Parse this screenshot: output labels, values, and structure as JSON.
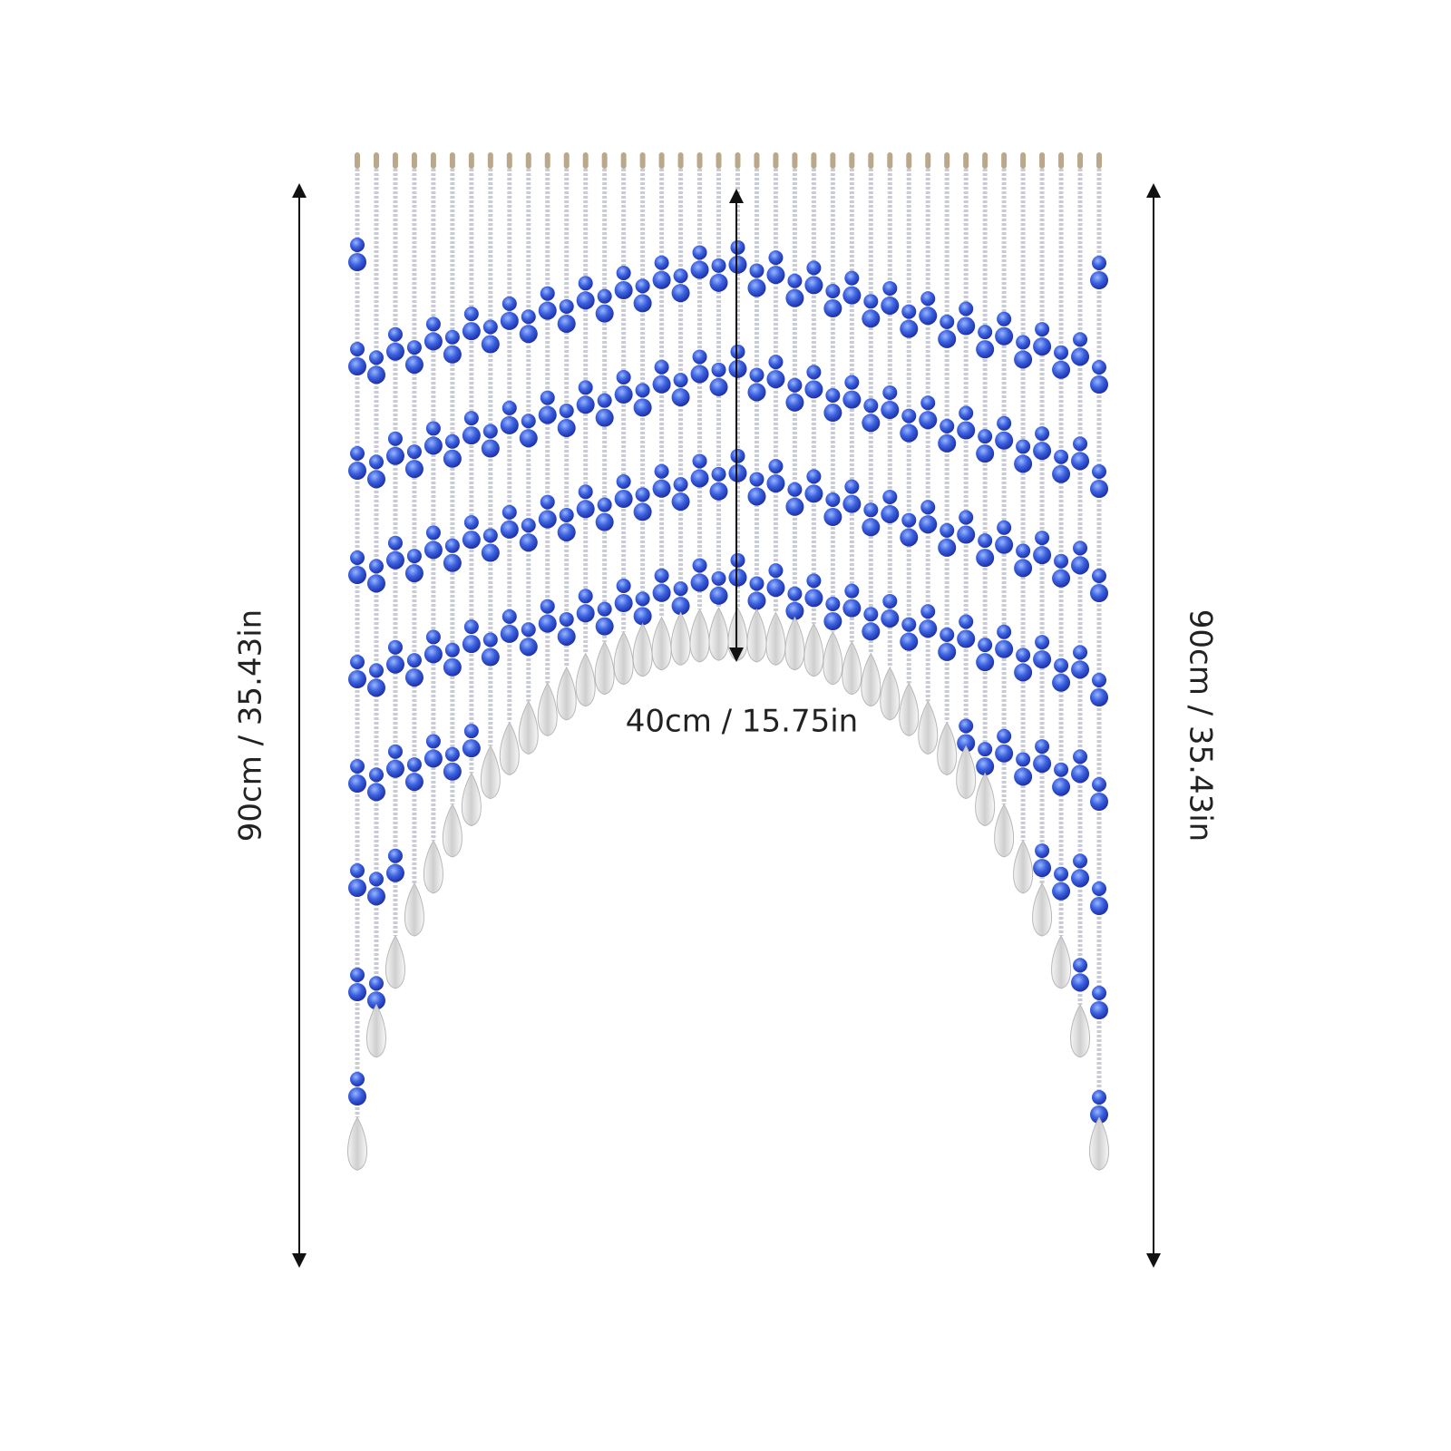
{
  "dimensions": {
    "left_height": "90cm / 35.43in",
    "right_height": "90cm / 35.43in",
    "arch_height": "40cm / 15.75in"
  }
}
